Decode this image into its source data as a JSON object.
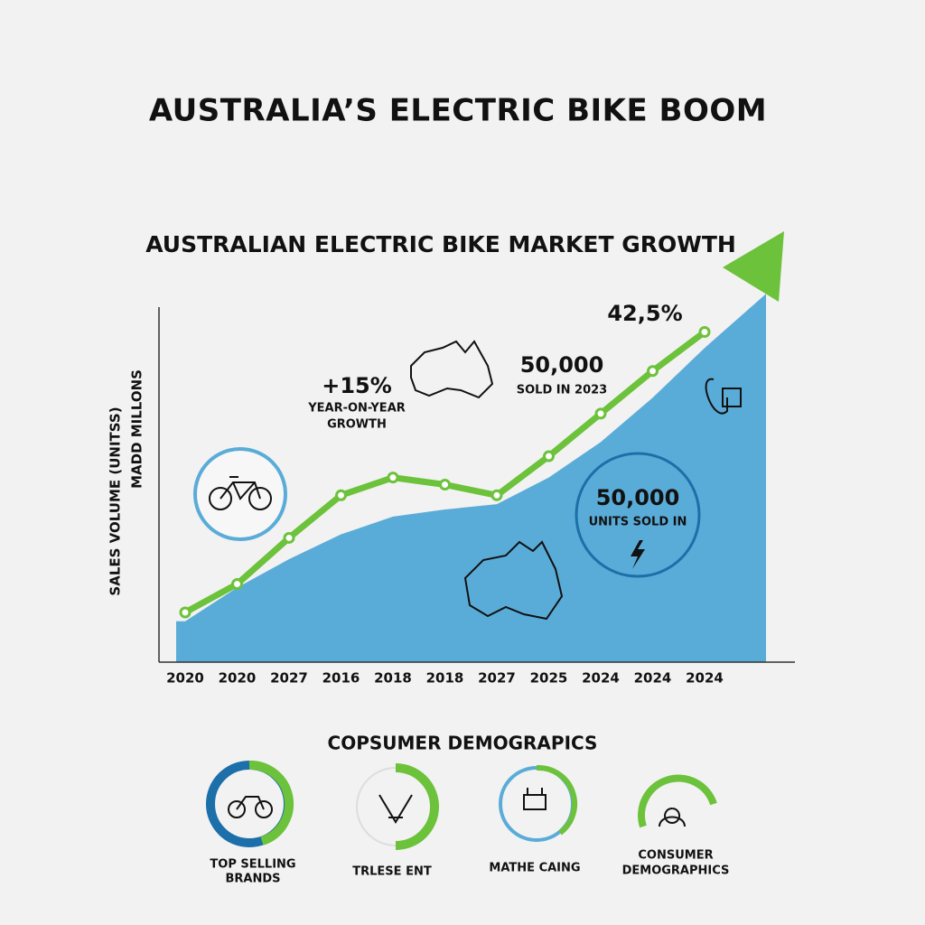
{
  "title": "AUSTRALIA’S ELECTRIC BIKE BOOM",
  "chart_data": {
    "type": "line",
    "title": "AUSTRALIAN ELECTRIC BIKE MARKET GROWTH",
    "y_label": [
      "SALES VOLUME (UNITSS)",
      "MADD MILLONS"
    ],
    "categories": [
      "2020",
      "2020",
      "2027",
      "2016",
      "2018",
      "2018",
      "2027",
      "2025",
      "2024",
      "2024",
      "2024"
    ],
    "ylim": [
      0,
      100
    ],
    "series": [
      {
        "type": "area",
        "color": "#5aacd8",
        "values": [
          11.5,
          21,
          29,
          36,
          41,
          43,
          44.5,
          52,
          62,
          74.5,
          88.5
        ]
      },
      {
        "type": "line",
        "color": "#6cc23a",
        "values": [
          14,
          22,
          35,
          47,
          52,
          50,
          47,
          58,
          70,
          82,
          93
        ]
      }
    ],
    "annotations": [
      "+15%",
      "YEAR-ON-YEAR",
      "GROWTH",
      "50,000",
      "SOLD IN 2023",
      "42,5%",
      "50,000",
      "UNITS SOLD IN"
    ]
  },
  "demographics": {
    "title": "COPSUMER DEMOGRAPICS",
    "items": [
      [
        "TOP SELLING",
        "BRANDS"
      ],
      [
        "TRLESE ENT"
      ],
      [
        "MATHE CAING"
      ],
      [
        "CONSUMER",
        "DEMOGRAPHICS"
      ]
    ]
  }
}
